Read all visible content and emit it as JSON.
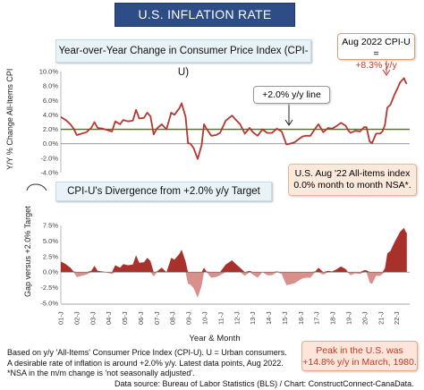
{
  "banner": "U.S. INFLATION RATE",
  "panel1_title": "Year-over-Year Change in Consumer Price Index (CPI-U)",
  "panel2_title": "CPI-U's Divergence from +2.0% y/y Target",
  "callouts": {
    "latest_line1": "Aug 2022 CPI-U =",
    "latest_line2": "+8.3% y/y",
    "target_line": "+2.0% y/y line",
    "mm_line1": "U.S. Aug '22 All-items index",
    "mm_line2": "0.0% month to month NSA*.",
    "peak_line1": "Peak in the U.S. was",
    "peak_line2": "+14.8% y/y in March, 1980."
  },
  "axes": {
    "y1_label": "Y/Y % Change All-Items CPI",
    "y2_label": "Gap versus +2.0% Target",
    "x_label": "Year & Month"
  },
  "footnote": {
    "line1": "Based on y/y 'All-Items' Consumer Price Index (CPI-U). U = Urban consumers.",
    "line2": "A desirable rate of inflation is around +2.0% y/y. Latest data points, Aug 2022.",
    "line3": "*NSA in the m/m change is 'not seasonally adjusted'."
  },
  "source": "Data source: Bureau of Labor Statistics (BLS) / Chart: ConstructConnect-CanaData.",
  "colors": {
    "line": "#b5372f",
    "target": "#556b2f",
    "gap_pos": "#a8322b",
    "gap_neg": "#d9908a",
    "banner": "#2e4d87"
  },
  "chart_data": [
    {
      "type": "line",
      "ylabel": "Y/Y % Change All-Items CPI",
      "ylim": [
        -4,
        10
      ],
      "yticks": [
        "10.0%",
        "8.0%",
        "6.0%",
        "4.0%",
        "2.0%",
        "0.0%",
        "-2.0%",
        "-4.0%"
      ],
      "target": 2.0,
      "x_ticks": [
        "01-J",
        "02-J",
        "03-J",
        "04-J",
        "05-J",
        "06-J",
        "07-J",
        "08-J",
        "09-J",
        "10-J",
        "11-J",
        "12-J",
        "13-J",
        "14-J",
        "15-J",
        "16-J",
        "17-J",
        "18-J",
        "19-J",
        "20-J",
        "21-J",
        "22-J"
      ],
      "series_points": [
        [
          2001.0,
          3.7
        ],
        [
          2001.3,
          3.3
        ],
        [
          2001.6,
          2.7
        ],
        [
          2001.8,
          2.1
        ],
        [
          2002.0,
          1.2
        ],
        [
          2002.3,
          1.4
        ],
        [
          2002.6,
          1.6
        ],
        [
          2002.9,
          2.2
        ],
        [
          2003.1,
          3.0
        ],
        [
          2003.3,
          2.2
        ],
        [
          2003.6,
          2.1
        ],
        [
          2003.9,
          1.9
        ],
        [
          2004.2,
          1.7
        ],
        [
          2004.4,
          3.1
        ],
        [
          2004.7,
          2.7
        ],
        [
          2004.9,
          3.3
        ],
        [
          2005.2,
          3.1
        ],
        [
          2005.5,
          3.2
        ],
        [
          2005.7,
          4.7
        ],
        [
          2005.9,
          3.5
        ],
        [
          2006.2,
          3.6
        ],
        [
          2006.4,
          4.3
        ],
        [
          2006.6,
          3.8
        ],
        [
          2006.8,
          1.3
        ],
        [
          2007.0,
          2.1
        ],
        [
          2007.3,
          2.7
        ],
        [
          2007.6,
          2.0
        ],
        [
          2007.9,
          4.3
        ],
        [
          2008.1,
          4.0
        ],
        [
          2008.4,
          4.9
        ],
        [
          2008.55,
          5.6
        ],
        [
          2008.8,
          3.7
        ],
        [
          2008.95,
          0.1
        ],
        [
          2009.1,
          0.0
        ],
        [
          2009.3,
          -0.6
        ],
        [
          2009.55,
          -2.1
        ],
        [
          2009.8,
          -0.2
        ],
        [
          2009.95,
          2.7
        ],
        [
          2010.1,
          2.1
        ],
        [
          2010.4,
          1.1
        ],
        [
          2010.7,
          1.2
        ],
        [
          2010.95,
          1.5
        ],
        [
          2011.3,
          3.2
        ],
        [
          2011.7,
          3.9
        ],
        [
          2011.9,
          3.4
        ],
        [
          2012.2,
          2.7
        ],
        [
          2012.5,
          1.4
        ],
        [
          2012.8,
          2.2
        ],
        [
          2013.0,
          1.6
        ],
        [
          2013.3,
          1.1
        ],
        [
          2013.6,
          2.0
        ],
        [
          2013.9,
          1.5
        ],
        [
          2014.2,
          1.5
        ],
        [
          2014.5,
          2.1
        ],
        [
          2014.8,
          1.7
        ],
        [
          2014.95,
          0.8
        ],
        [
          2015.1,
          -0.1
        ],
        [
          2015.3,
          0.0
        ],
        [
          2015.6,
          0.2
        ],
        [
          2015.9,
          0.7
        ],
        [
          2016.1,
          1.0
        ],
        [
          2016.3,
          1.1
        ],
        [
          2016.6,
          1.1
        ],
        [
          2016.9,
          2.1
        ],
        [
          2017.1,
          2.7
        ],
        [
          2017.4,
          1.6
        ],
        [
          2017.7,
          2.2
        ],
        [
          2017.95,
          2.1
        ],
        [
          2018.2,
          2.4
        ],
        [
          2018.5,
          2.9
        ],
        [
          2018.8,
          2.5
        ],
        [
          2018.95,
          1.9
        ],
        [
          2019.1,
          1.5
        ],
        [
          2019.4,
          1.8
        ],
        [
          2019.7,
          1.7
        ],
        [
          2019.95,
          2.3
        ],
        [
          2020.1,
          2.3
        ],
        [
          2020.3,
          0.3
        ],
        [
          2020.45,
          0.1
        ],
        [
          2020.7,
          1.4
        ],
        [
          2020.95,
          1.4
        ],
        [
          2021.1,
          1.7
        ],
        [
          2021.25,
          2.6
        ],
        [
          2021.4,
          5.0
        ],
        [
          2021.6,
          5.4
        ],
        [
          2021.85,
          6.8
        ],
        [
          2022.0,
          7.5
        ],
        [
          2022.2,
          8.5
        ],
        [
          2022.45,
          9.1
        ],
        [
          2022.55,
          8.5
        ],
        [
          2022.62,
          8.3
        ]
      ]
    },
    {
      "type": "area",
      "ylabel": "Gap versus +2.0% Target",
      "ylim": [
        -5,
        7.5
      ],
      "yticks": [
        "7.5%",
        "5.0%",
        "2.5%",
        "0.0%",
        "-2.5%",
        "-5.0%"
      ],
      "note": "gap = y/y change minus 2.0 target"
    }
  ]
}
